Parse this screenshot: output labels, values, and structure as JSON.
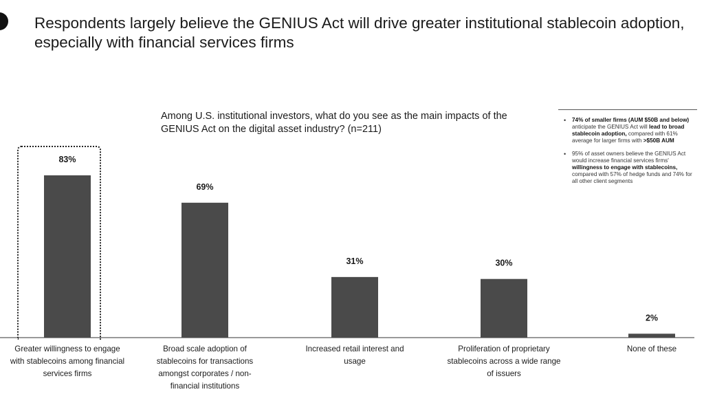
{
  "headline": "Respondents largely believe the GENIUS Act will drive greater institutional stablecoin adoption, especially with financial services firms",
  "chart_data": {
    "type": "bar",
    "title": "Among U.S. institutional investors, what do you see as the main impacts of the GENIUS Act on the digital asset industry? (n=211)",
    "categories": [
      "Greater willingness to engage with stablecoins among financial services firms",
      "Broad scale adoption of stablecoins for transactions amongst corporates / non-financial institutions",
      "Increased retail interest and usage",
      "Proliferation of proprietary stablecoins across a wide range of issuers",
      "None of these"
    ],
    "series": [
      {
        "values": [
          83,
          69,
          31,
          30,
          2
        ]
      }
    ],
    "value_labels": [
      "83%",
      "69%",
      "31%",
      "30%",
      "2%"
    ],
    "unit": "%",
    "ylim": [
      0,
      100
    ],
    "highlighted_category_index": 0,
    "bar_color": "#4a4a4a",
    "grid": false,
    "legend": "none"
  },
  "side_notes": {
    "note1": {
      "p1": "74% of smaller firms (AUM $50B and below)",
      "p2": " anticipate the GENIUS Act will ",
      "p3": "lead to broad stablecoin adoption,",
      "p4": " compared with 61% average for larger firms with ",
      "p5": ">$50B AUM"
    },
    "note2": {
      "p1": "95% of asset owners believe the GENIUS Act would increase financial services firms' ",
      "p2": "willingness to engage with stablecoins,",
      "p3": " compared with 57% of hedge funds and 74% for all other client segments"
    }
  },
  "colors": {
    "bar": "#4a4a4a",
    "axis": "#333333",
    "text": "#1a1a1a"
  }
}
